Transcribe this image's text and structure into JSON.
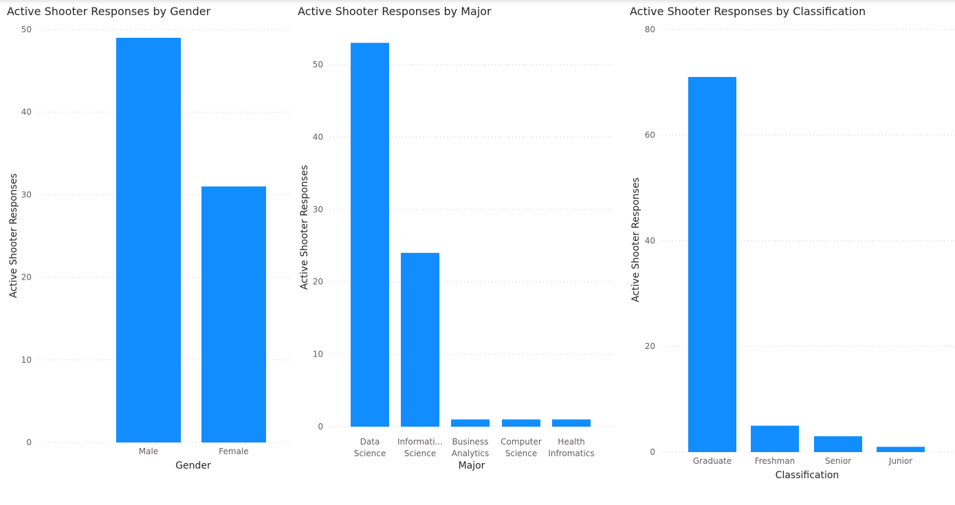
{
  "colors": {
    "bar": "#118dff",
    "grid": "#c8c6c4",
    "tick": "#605e5c",
    "title": "#252423"
  },
  "chart_data": [
    {
      "type": "bar",
      "title": "Active Shooter Responses by Gender",
      "xlabel": "Gender",
      "ylabel": "Active Shooter Responses",
      "categories": [
        [
          "Male"
        ],
        [
          "Female"
        ]
      ],
      "values": [
        49,
        31
      ],
      "ylim": [
        0,
        50
      ],
      "yticks": [
        0,
        10,
        20,
        30,
        40,
        50
      ],
      "grid": true
    },
    {
      "type": "bar",
      "title": "Active Shooter Responses by Major",
      "xlabel": "Major",
      "ylabel": "Active Shooter Responses",
      "categories": [
        [
          "Data",
          "Science"
        ],
        [
          "Informati...",
          "Science"
        ],
        [
          "Business",
          "Analytics"
        ],
        [
          "Computer",
          "Science"
        ],
        [
          "Health",
          "Infromatics"
        ]
      ],
      "values": [
        53,
        24,
        1,
        1,
        1
      ],
      "ylim": [
        0,
        50
      ],
      "yticks": [
        0,
        10,
        20,
        30,
        40,
        50
      ],
      "grid": true
    },
    {
      "type": "bar",
      "title": "Active Shooter Responses by Classification",
      "xlabel": "Classification",
      "ylabel": "Active Shooter Responses",
      "categories": [
        [
          "Graduate"
        ],
        [
          "Freshman"
        ],
        [
          "Senior"
        ],
        [
          "Junior"
        ]
      ],
      "values": [
        71,
        5,
        3,
        1
      ],
      "ylim": [
        0,
        80
      ],
      "yticks": [
        0,
        20,
        40,
        60,
        80
      ],
      "grid": true
    }
  ]
}
